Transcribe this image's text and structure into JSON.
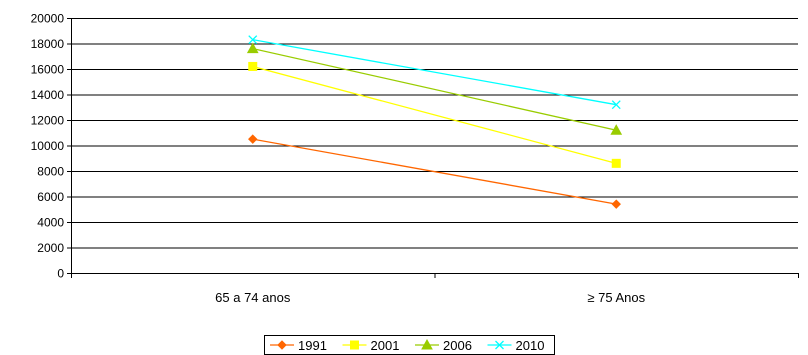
{
  "chart_data": {
    "type": "line",
    "categories": [
      "65 a 74 anos",
      "≥ 75 Anos"
    ],
    "series": [
      {
        "name": "1991",
        "values": [
          10500,
          5400
        ],
        "color": "#ff6600",
        "marker": "diamond"
      },
      {
        "name": "2001",
        "values": [
          16200,
          8600
        ],
        "color": "#ffff00",
        "marker": "square"
      },
      {
        "name": "2006",
        "values": [
          17600,
          11200
        ],
        "color": "#99cc00",
        "marker": "triangle"
      },
      {
        "name": "2010",
        "values": [
          18300,
          13200
        ],
        "color": "#00ffff",
        "marker": "x"
      }
    ],
    "ylim": [
      0,
      20000
    ],
    "yticks": [
      "0",
      "2000",
      "4000",
      "6000",
      "8000",
      "10000",
      "12000",
      "14000",
      "16000",
      "18000",
      "20000"
    ],
    "grid": true,
    "legend_position": "bottom"
  }
}
